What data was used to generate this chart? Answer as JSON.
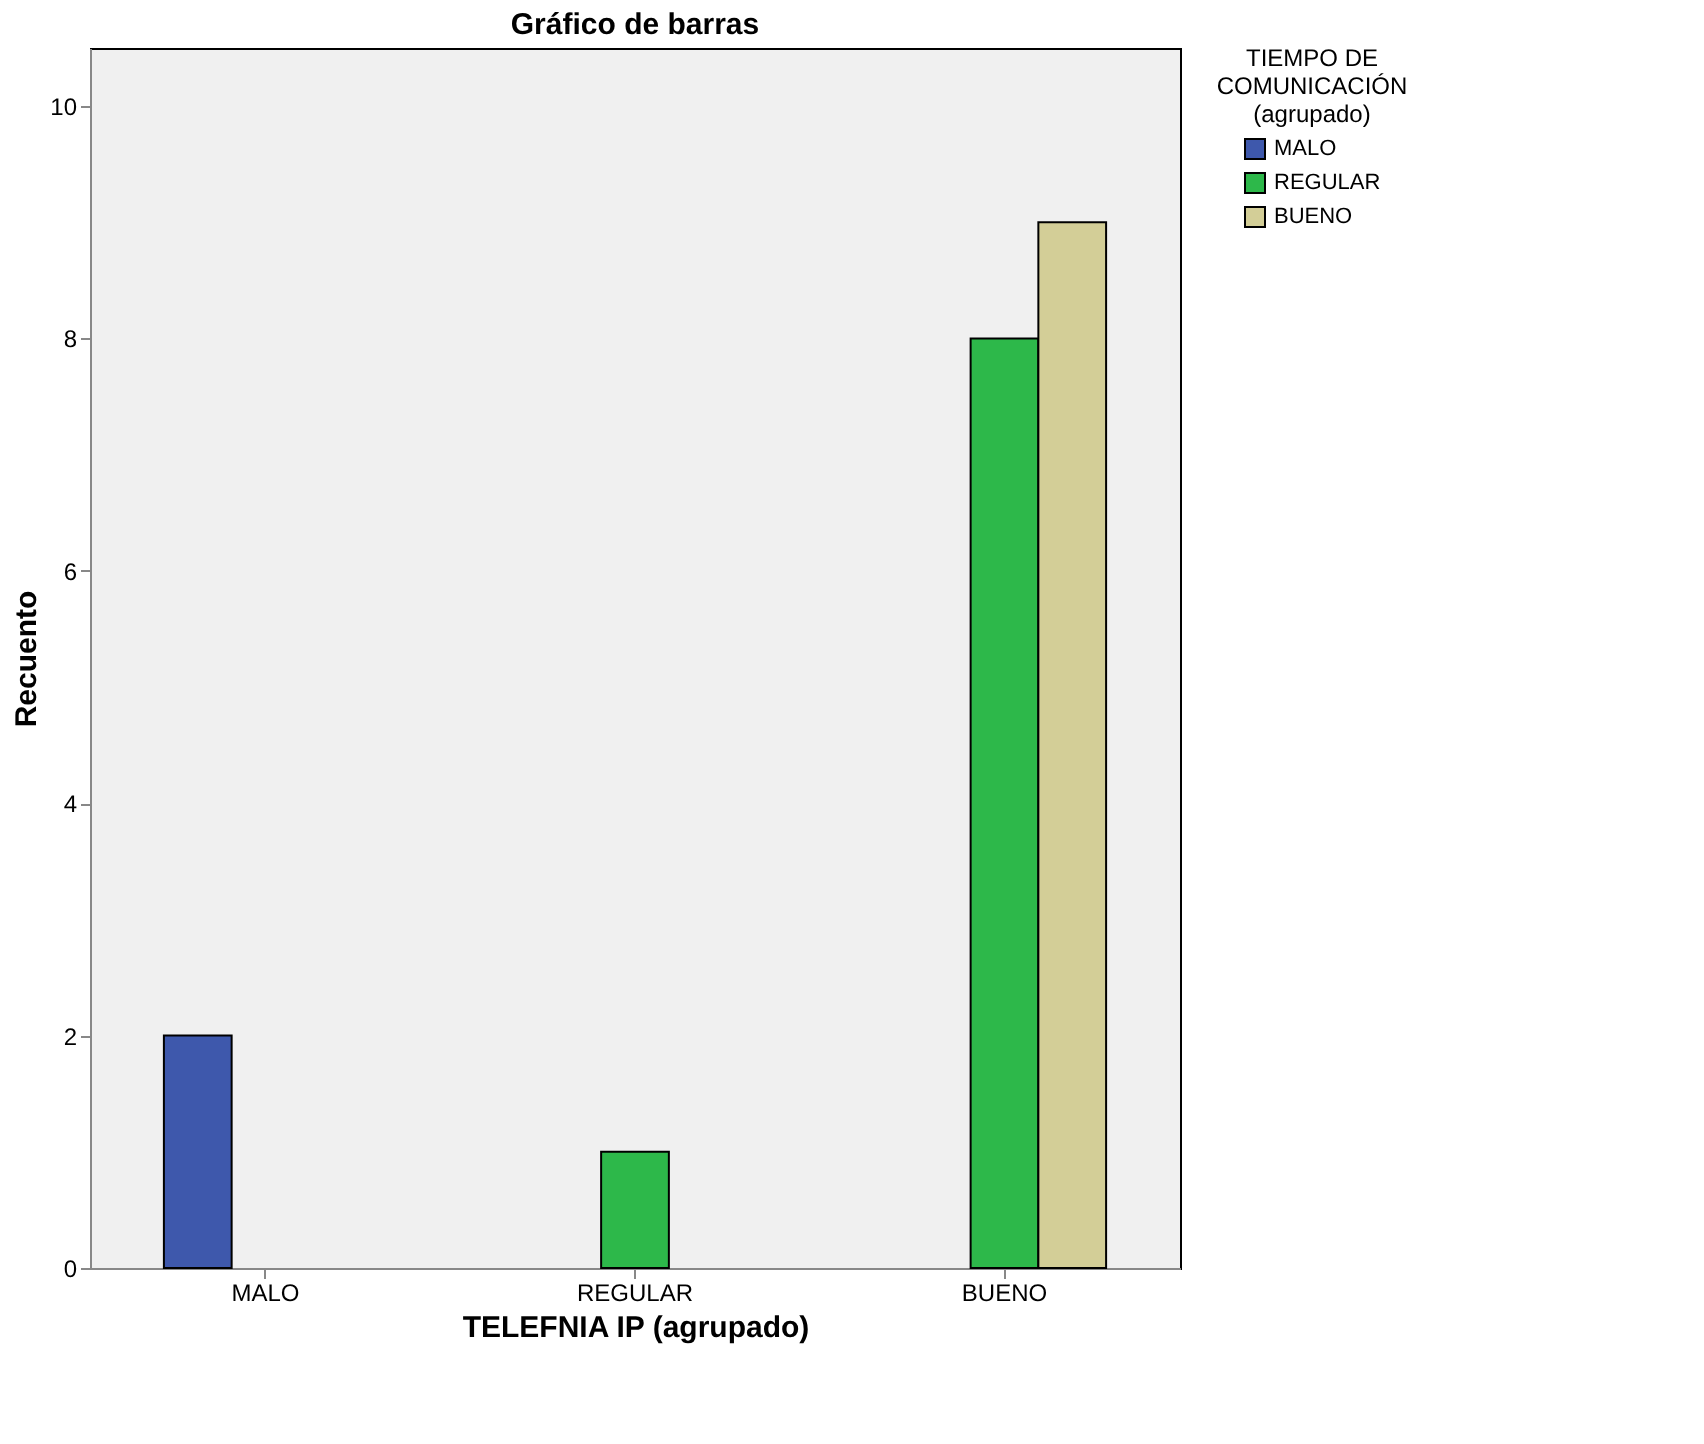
{
  "chart_data": {
    "type": "bar",
    "title": "Gráfico de barras",
    "xlabel": "TELEFNIA IP (agrupado)",
    "ylabel": "Recuento",
    "legend_title": "TIEMPO DE COMUNICACIÓN (agrupado)",
    "categories": [
      "MALO",
      "REGULAR",
      "BUENO"
    ],
    "series": [
      {
        "name": "MALO",
        "color": "#3e58ac",
        "values": [
          2,
          null,
          null
        ]
      },
      {
        "name": "REGULAR",
        "color": "#2db84a",
        "values": [
          null,
          1,
          8
        ]
      },
      {
        "name": "BUENO",
        "color": "#d3ce97",
        "values": [
          null,
          null,
          9
        ]
      }
    ],
    "ylim": [
      0,
      10.5
    ],
    "yticks": [
      0,
      2,
      4,
      6,
      8,
      10
    ],
    "grid": false,
    "legend": "top right"
  }
}
